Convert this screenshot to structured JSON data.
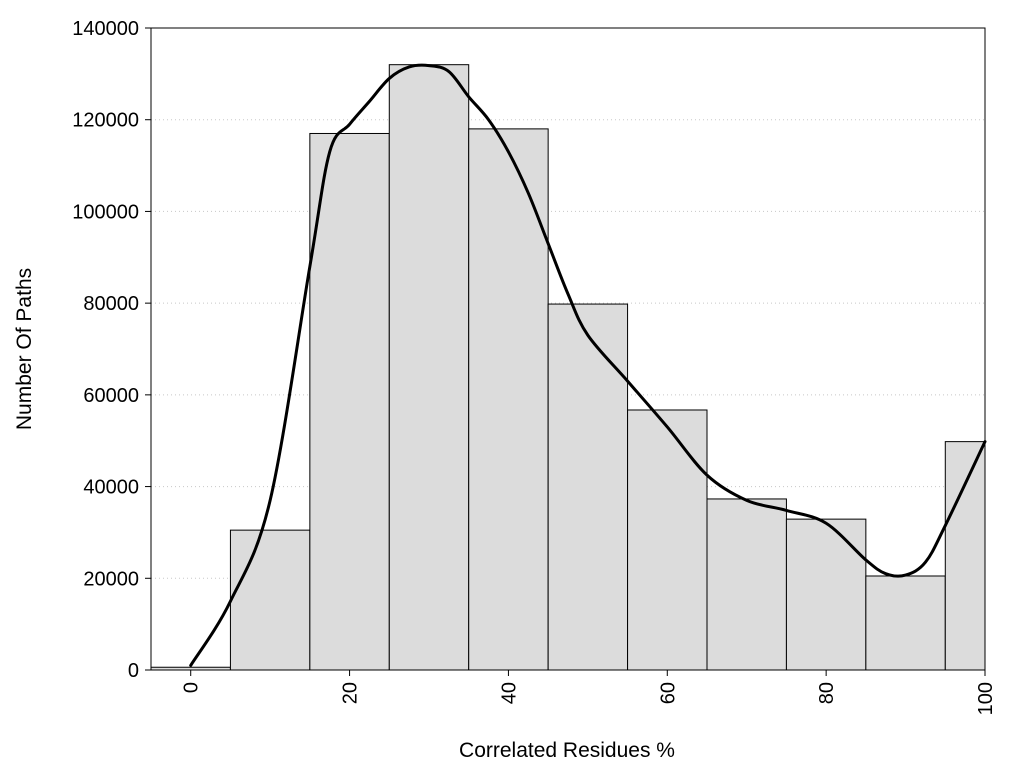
{
  "chart_data": {
    "type": "bar",
    "xlabel": "Correlated Residues %",
    "ylabel": "Number Of Paths",
    "xlim": [
      -5,
      100
    ],
    "ylim": [
      0,
      140000
    ],
    "x_ticks": [
      0,
      20,
      40,
      60,
      80,
      100
    ],
    "y_ticks": [
      0,
      20000,
      40000,
      60000,
      80000,
      100000,
      120000,
      140000
    ],
    "grid": "horizontal dotted",
    "bin_width": 10,
    "bars": [
      {
        "x": 0,
        "value": 600
      },
      {
        "x": 10,
        "value": 30500
      },
      {
        "x": 20,
        "value": 117000
      },
      {
        "x": 30,
        "value": 132000
      },
      {
        "x": 40,
        "value": 118000
      },
      {
        "x": 50,
        "value": 79800
      },
      {
        "x": 60,
        "value": 56700
      },
      {
        "x": 70,
        "value": 37300
      },
      {
        "x": 80,
        "value": 32900
      },
      {
        "x": 90,
        "value": 20500
      },
      {
        "x": 100,
        "value": 49800
      }
    ],
    "curve": {
      "type": "line",
      "points": [
        [
          0,
          1000
        ],
        [
          5,
          15000
        ],
        [
          10,
          37000
        ],
        [
          15,
          88000
        ],
        [
          17.5,
          113000
        ],
        [
          20,
          119000
        ],
        [
          22.5,
          124000
        ],
        [
          25,
          129000
        ],
        [
          27.5,
          131500
        ],
        [
          30,
          131800
        ],
        [
          32.5,
          130500
        ],
        [
          35,
          125000
        ],
        [
          37.5,
          120000
        ],
        [
          40,
          113000
        ],
        [
          42.5,
          104000
        ],
        [
          45,
          93000
        ],
        [
          47.5,
          82000
        ],
        [
          50,
          73000
        ],
        [
          55,
          63000
        ],
        [
          60,
          53000
        ],
        [
          65,
          42500
        ],
        [
          70,
          37000
        ],
        [
          75,
          34800
        ],
        [
          80,
          32000
        ],
        [
          85,
          24000
        ],
        [
          87.5,
          21000
        ],
        [
          90,
          20700
        ],
        [
          92.5,
          23500
        ],
        [
          95,
          31500
        ],
        [
          100,
          49800
        ]
      ]
    },
    "colors": {
      "bar_fill": "#dcdcdc",
      "bar_stroke": "#000000",
      "curve": "#000000",
      "grid": "#c8c8c8"
    }
  }
}
